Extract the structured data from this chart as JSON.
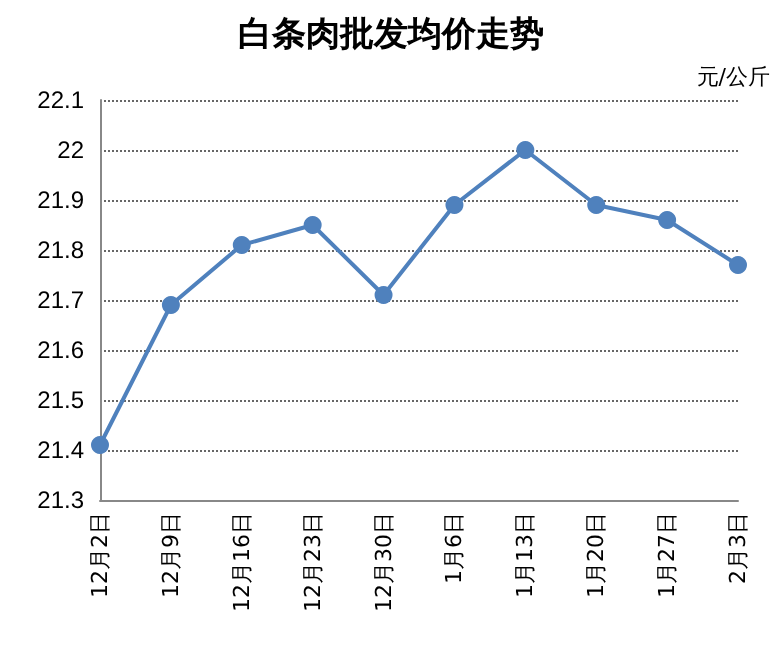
{
  "chart_data": {
    "type": "line",
    "title": "白条肉批发均价走势",
    "ylabel": "元/公斤",
    "categories": [
      "12月2日",
      "12月9日",
      "12月16日",
      "12月23日",
      "12月30日",
      "1月6日",
      "1月13日",
      "1月20日",
      "1月27日",
      "2月3日"
    ],
    "series": [
      {
        "color": "#4f81bd",
        "values": [
          21.41,
          21.69,
          21.81,
          21.85,
          21.71,
          21.89,
          22.0,
          21.89,
          21.86,
          21.77
        ]
      }
    ],
    "ylim": [
      21.3,
      22.1
    ],
    "yticks": [
      21.3,
      21.4,
      21.5,
      21.6,
      21.7,
      21.8,
      21.9,
      22,
      22.1
    ],
    "grid": "y",
    "marker": "circle",
    "line_style": "solid"
  }
}
